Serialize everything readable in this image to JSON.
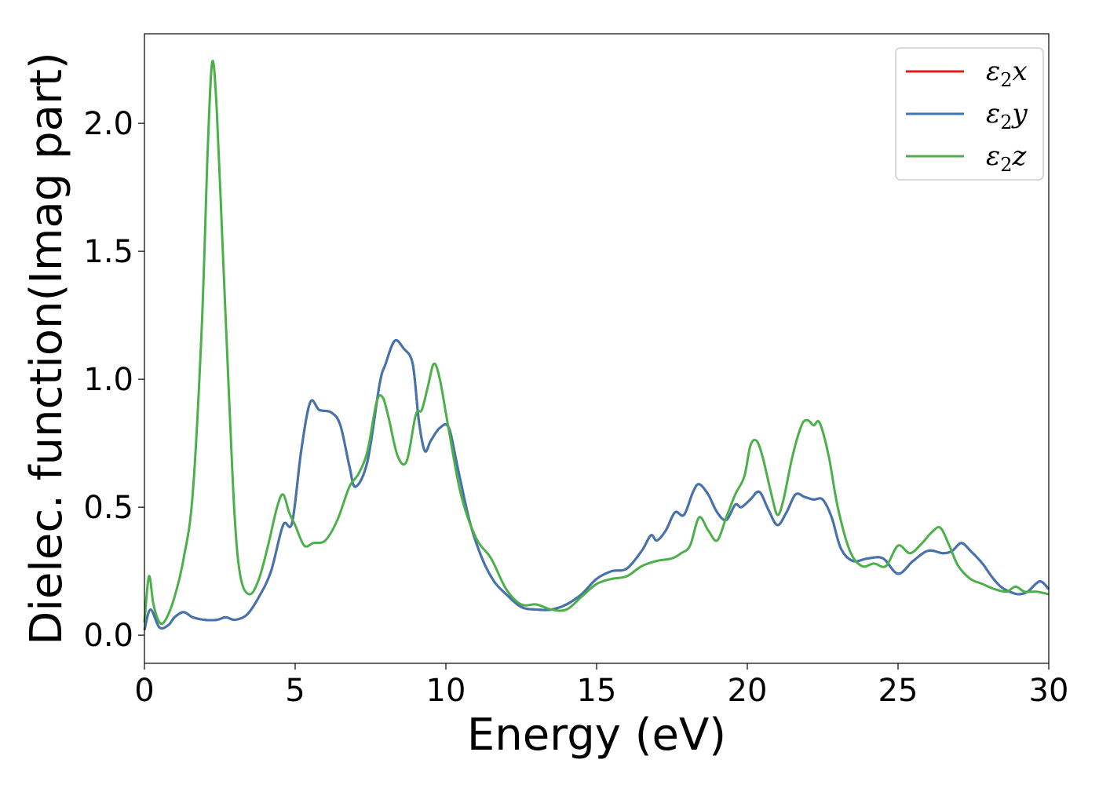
{
  "chart_data": {
    "type": "line",
    "title": "",
    "xlabel": "Energy (eV)",
    "ylabel": "Dielec. function(Imag part)",
    "xlim": [
      0,
      30
    ],
    "ylim": [
      -0.11,
      2.35
    ],
    "xticks": [
      0,
      5,
      10,
      15,
      20,
      25,
      30
    ],
    "xtick_labels": [
      "0",
      "5",
      "10",
      "15",
      "20",
      "25",
      "30"
    ],
    "yticks": [
      0.0,
      0.5,
      1.0,
      1.5,
      2.0
    ],
    "ytick_labels": [
      "0.0",
      "0.5",
      "1.0",
      "1.5",
      "2.0"
    ],
    "grid": false,
    "legend_position": "top-right",
    "series": [
      {
        "name": "ε2x",
        "name_base": "ε",
        "name_sub": "2",
        "name_suffix": "x",
        "color": "#e41a1c",
        "x": [
          0,
          0.2,
          0.5,
          0.8,
          1.0,
          1.3,
          1.6,
          2.0,
          2.4,
          2.7,
          3.0,
          3.4,
          3.8,
          4.2,
          4.6,
          4.9,
          5.2,
          5.5,
          5.8,
          6.2,
          6.5,
          6.8,
          7.0,
          7.4,
          7.8,
          8.0,
          8.3,
          8.6,
          8.9,
          9.1,
          9.3,
          9.5,
          9.8,
          10.1,
          10.4,
          10.8,
          11.2,
          11.6,
          12.0,
          12.5,
          13.0,
          13.5,
          14.0,
          14.5,
          15.0,
          15.5,
          16.0,
          16.5,
          16.8,
          17.0,
          17.3,
          17.6,
          17.9,
          18.2,
          18.4,
          18.7,
          19.0,
          19.3,
          19.6,
          19.8,
          20.1,
          20.4,
          20.7,
          21.0,
          21.3,
          21.6,
          21.9,
          22.2,
          22.5,
          22.8,
          23.1,
          23.5,
          24.0,
          24.5,
          25.0,
          25.5,
          26.0,
          26.5,
          26.8,
          27.1,
          27.4,
          27.8,
          28.1,
          28.4,
          28.7,
          29.0,
          29.3,
          29.7,
          30.0
        ],
        "y": [
          0.02,
          0.1,
          0.03,
          0.04,
          0.07,
          0.09,
          0.07,
          0.06,
          0.06,
          0.07,
          0.06,
          0.08,
          0.15,
          0.25,
          0.43,
          0.44,
          0.72,
          0.91,
          0.88,
          0.87,
          0.82,
          0.66,
          0.58,
          0.68,
          0.98,
          1.06,
          1.15,
          1.12,
          1.06,
          0.84,
          0.72,
          0.76,
          0.81,
          0.81,
          0.65,
          0.44,
          0.3,
          0.21,
          0.16,
          0.11,
          0.1,
          0.1,
          0.12,
          0.16,
          0.22,
          0.25,
          0.26,
          0.33,
          0.39,
          0.37,
          0.41,
          0.48,
          0.47,
          0.56,
          0.59,
          0.55,
          0.48,
          0.45,
          0.51,
          0.5,
          0.53,
          0.56,
          0.49,
          0.43,
          0.48,
          0.55,
          0.54,
          0.53,
          0.53,
          0.46,
          0.34,
          0.29,
          0.3,
          0.3,
          0.24,
          0.29,
          0.33,
          0.32,
          0.33,
          0.36,
          0.33,
          0.28,
          0.23,
          0.19,
          0.17,
          0.16,
          0.17,
          0.21,
          0.18
        ]
      },
      {
        "name": "ε2y",
        "name_base": "ε",
        "name_sub": "2",
        "name_suffix": "y",
        "color": "#3f75b0",
        "x": [
          0,
          0.2,
          0.5,
          0.8,
          1.0,
          1.3,
          1.6,
          2.0,
          2.4,
          2.7,
          3.0,
          3.4,
          3.8,
          4.2,
          4.6,
          4.9,
          5.2,
          5.5,
          5.8,
          6.2,
          6.5,
          6.8,
          7.0,
          7.4,
          7.8,
          8.0,
          8.3,
          8.6,
          8.9,
          9.1,
          9.3,
          9.5,
          9.8,
          10.1,
          10.4,
          10.8,
          11.2,
          11.6,
          12.0,
          12.5,
          13.0,
          13.5,
          14.0,
          14.5,
          15.0,
          15.5,
          16.0,
          16.5,
          16.8,
          17.0,
          17.3,
          17.6,
          17.9,
          18.2,
          18.4,
          18.7,
          19.0,
          19.3,
          19.6,
          19.8,
          20.1,
          20.4,
          20.7,
          21.0,
          21.3,
          21.6,
          21.9,
          22.2,
          22.5,
          22.8,
          23.1,
          23.5,
          24.0,
          24.5,
          25.0,
          25.5,
          26.0,
          26.5,
          26.8,
          27.1,
          27.4,
          27.8,
          28.1,
          28.4,
          28.7,
          29.0,
          29.3,
          29.7,
          30.0
        ],
        "y": [
          0.02,
          0.1,
          0.03,
          0.04,
          0.07,
          0.09,
          0.07,
          0.06,
          0.06,
          0.07,
          0.06,
          0.08,
          0.15,
          0.25,
          0.43,
          0.44,
          0.72,
          0.91,
          0.88,
          0.87,
          0.82,
          0.66,
          0.58,
          0.68,
          0.98,
          1.06,
          1.15,
          1.12,
          1.06,
          0.84,
          0.72,
          0.76,
          0.81,
          0.81,
          0.65,
          0.44,
          0.3,
          0.21,
          0.16,
          0.11,
          0.1,
          0.1,
          0.12,
          0.16,
          0.22,
          0.25,
          0.26,
          0.33,
          0.39,
          0.37,
          0.41,
          0.48,
          0.47,
          0.56,
          0.59,
          0.55,
          0.48,
          0.45,
          0.51,
          0.5,
          0.53,
          0.56,
          0.49,
          0.43,
          0.48,
          0.55,
          0.54,
          0.53,
          0.53,
          0.46,
          0.34,
          0.29,
          0.3,
          0.3,
          0.24,
          0.29,
          0.33,
          0.32,
          0.33,
          0.36,
          0.33,
          0.28,
          0.23,
          0.19,
          0.17,
          0.16,
          0.17,
          0.21,
          0.18
        ]
      },
      {
        "name": "ε2z",
        "name_base": "ε",
        "name_sub": "2",
        "name_suffix": "z",
        "color": "#4daf4a",
        "x": [
          0,
          0.15,
          0.3,
          0.5,
          0.7,
          1.0,
          1.3,
          1.6,
          1.9,
          2.1,
          2.25,
          2.4,
          2.6,
          2.8,
          3.0,
          3.2,
          3.5,
          3.8,
          4.1,
          4.4,
          4.6,
          4.8,
          5.0,
          5.3,
          5.6,
          6.0,
          6.4,
          6.8,
          7.1,
          7.4,
          7.7,
          7.9,
          8.1,
          8.4,
          8.7,
          9.0,
          9.2,
          9.4,
          9.6,
          9.8,
          10.1,
          10.5,
          11.0,
          11.5,
          12.0,
          12.5,
          13.0,
          13.5,
          14.0,
          14.5,
          15.0,
          15.5,
          16.0,
          16.5,
          17.0,
          17.5,
          17.8,
          18.1,
          18.4,
          18.7,
          19.0,
          19.3,
          19.6,
          19.9,
          20.1,
          20.3,
          20.5,
          20.8,
          21.0,
          21.2,
          21.5,
          21.8,
          22.0,
          22.2,
          22.4,
          22.7,
          23.0,
          23.4,
          23.8,
          24.2,
          24.6,
          25.0,
          25.4,
          25.8,
          26.1,
          26.4,
          26.7,
          27.0,
          27.4,
          27.8,
          28.2,
          28.6,
          28.9,
          29.2,
          29.6,
          30.0
        ],
        "y": [
          0.05,
          0.23,
          0.12,
          0.05,
          0.06,
          0.15,
          0.3,
          0.55,
          1.2,
          1.9,
          2.24,
          2.05,
          1.5,
          0.95,
          0.45,
          0.22,
          0.16,
          0.22,
          0.35,
          0.5,
          0.55,
          0.48,
          0.43,
          0.35,
          0.36,
          0.37,
          0.45,
          0.58,
          0.63,
          0.72,
          0.91,
          0.93,
          0.85,
          0.7,
          0.68,
          0.86,
          0.88,
          0.97,
          1.06,
          1.0,
          0.8,
          0.55,
          0.38,
          0.3,
          0.18,
          0.12,
          0.12,
          0.1,
          0.1,
          0.15,
          0.2,
          0.22,
          0.23,
          0.27,
          0.29,
          0.3,
          0.32,
          0.35,
          0.46,
          0.41,
          0.37,
          0.46,
          0.55,
          0.62,
          0.74,
          0.76,
          0.7,
          0.55,
          0.47,
          0.53,
          0.7,
          0.82,
          0.84,
          0.82,
          0.83,
          0.7,
          0.5,
          0.33,
          0.27,
          0.28,
          0.27,
          0.35,
          0.32,
          0.36,
          0.4,
          0.42,
          0.35,
          0.27,
          0.22,
          0.2,
          0.18,
          0.17,
          0.19,
          0.17,
          0.17,
          0.16
        ]
      }
    ]
  }
}
